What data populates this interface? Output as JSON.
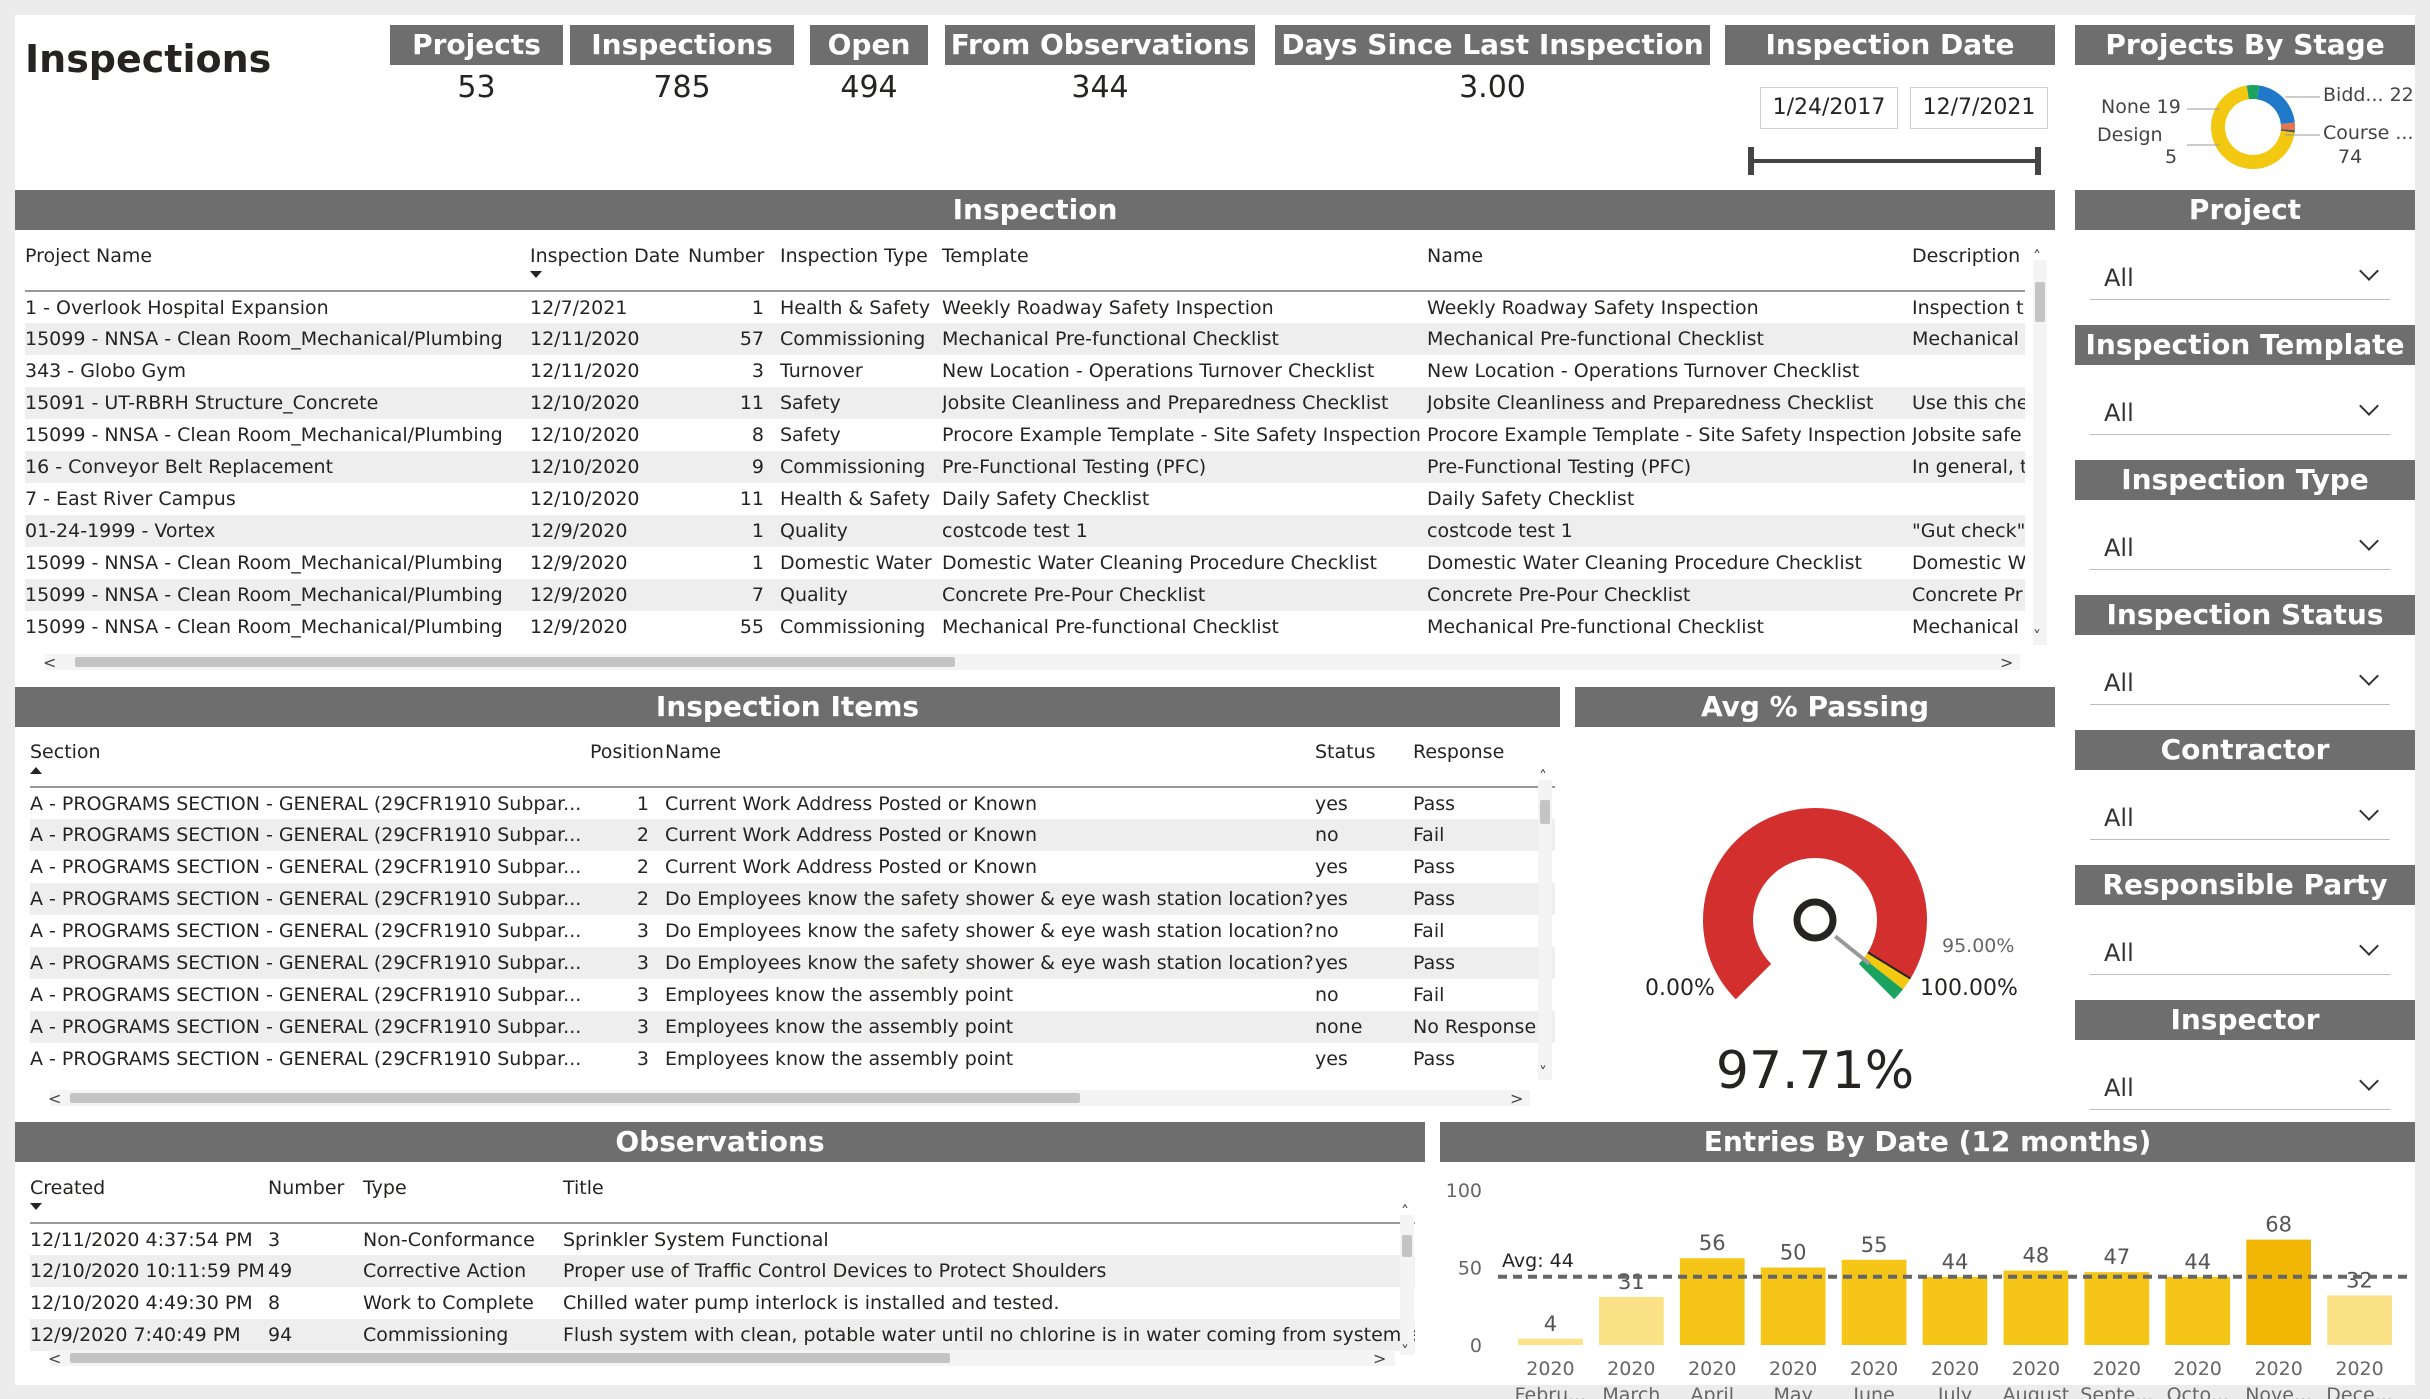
{
  "page": {
    "title": "Inspections"
  },
  "cards": [
    {
      "label": "Projects",
      "value": "53"
    },
    {
      "label": "Inspections",
      "value": "785"
    },
    {
      "label": "Open",
      "value": "494"
    },
    {
      "label": "From Observations",
      "value": "344"
    },
    {
      "label": "Days Since Last Inspection",
      "value": "3.00"
    }
  ],
  "date_filter": {
    "label": "Inspection Date",
    "start": "1/24/2017",
    "end": "12/7/2021"
  },
  "stage_chart": {
    "title": "Projects By Stage",
    "slices": [
      {
        "label": "None",
        "value": 19,
        "display": "None 19",
        "color": "#1f78c8"
      },
      {
        "label": "Bidd...",
        "value": 22,
        "display": "Bidd... 22",
        "color": "#1f78c8"
      },
      {
        "label": "Course ...",
        "value": 74,
        "display": "74",
        "color": "#f2c811"
      },
      {
        "label": "Design",
        "value": 5,
        "display": "5",
        "color": "#1aa260"
      }
    ],
    "extra_colors": [
      "#e8744f",
      "#555555",
      "#8ab4e8"
    ],
    "design_label": "Design",
    "course_label": "Course ...",
    "bidd_label": "Bidd... 22",
    "none_label": "None 19",
    "design_val": "5",
    "course_val": "74"
  },
  "inspection_table": {
    "title": "Inspection",
    "columns": [
      "Project Name",
      "Inspection Date",
      "Number",
      "Inspection Type",
      "Template",
      "Name",
      "Description"
    ],
    "rows": [
      [
        "1 - Overlook Hospital Expansion",
        "12/7/2021",
        "1",
        "Health & Safety",
        "Weekly Roadway Safety Inspection",
        "Weekly Roadway Safety Inspection",
        "Inspection t"
      ],
      [
        "15099 - NNSA - Clean Room_Mechanical/Plumbing",
        "12/11/2020",
        "57",
        "Commissioning",
        "Mechanical Pre-functional Checklist",
        "Mechanical Pre-functional Checklist",
        "Mechanical"
      ],
      [
        "343 - Globo Gym",
        "12/11/2020",
        "3",
        "Turnover",
        "New Location - Operations Turnover Checklist",
        "New Location - Operations Turnover Checklist",
        ""
      ],
      [
        "15091 - UT-RBRH Structure_Concrete",
        "12/10/2020",
        "11",
        "Safety",
        "Jobsite Cleanliness and Preparedness Checklist",
        "Jobsite Cleanliness and Preparedness Checklist",
        "Use this che"
      ],
      [
        "15099 - NNSA - Clean Room_Mechanical/Plumbing",
        "12/10/2020",
        "8",
        "Safety",
        "Procore Example Template - Site Safety Inspection",
        "Procore Example Template - Site Safety Inspection",
        "Jobsite safe"
      ],
      [
        "16 - Conveyor Belt Replacement",
        "12/10/2020",
        "9",
        "Commissioning",
        "Pre-Functional Testing (PFC)",
        "Pre-Functional Testing (PFC)",
        "In general, t"
      ],
      [
        "7 - East River Campus",
        "12/10/2020",
        "11",
        "Health & Safety",
        "Daily Safety Checklist",
        "Daily Safety Checklist",
        ""
      ],
      [
        "01-24-1999 - Vortex",
        "12/9/2020",
        "1",
        "Quality",
        "costcode test 1",
        "costcode test 1",
        "\"Gut check\""
      ],
      [
        "15099 - NNSA - Clean Room_Mechanical/Plumbing",
        "12/9/2020",
        "1",
        "Domestic Water",
        "Domestic Water Cleaning Procedure Checklist",
        "Domestic Water Cleaning Procedure Checklist",
        "Domestic W"
      ],
      [
        "15099 - NNSA - Clean Room_Mechanical/Plumbing",
        "12/9/2020",
        "7",
        "Quality",
        "Concrete Pre-Pour Checklist",
        "Concrete Pre-Pour Checklist",
        "Concrete Pr"
      ],
      [
        "15099 - NNSA - Clean Room_Mechanical/Plumbing",
        "12/9/2020",
        "55",
        "Commissioning",
        "Mechanical Pre-functional Checklist",
        "Mechanical Pre-functional Checklist",
        "Mechanical"
      ]
    ]
  },
  "items_table": {
    "title": "Inspection Items",
    "columns": [
      "Section",
      "Position",
      "Name",
      "Status",
      "Response"
    ],
    "rows": [
      [
        "A - PROGRAMS SECTION - GENERAL (29CFR1910 Subpar...",
        "1",
        "Current Work Address Posted or Known",
        "yes",
        "Pass"
      ],
      [
        "A - PROGRAMS SECTION - GENERAL (29CFR1910 Subpar...",
        "2",
        "Current Work Address Posted or Known",
        "no",
        "Fail"
      ],
      [
        "A - PROGRAMS SECTION - GENERAL (29CFR1910 Subpar...",
        "2",
        "Current Work Address Posted or Known",
        "yes",
        "Pass"
      ],
      [
        "A - PROGRAMS SECTION - GENERAL (29CFR1910 Subpar...",
        "2",
        "Do Employees know the safety shower & eye wash station location?",
        "yes",
        "Pass"
      ],
      [
        "A - PROGRAMS SECTION - GENERAL (29CFR1910 Subpar...",
        "3",
        "Do Employees know the safety shower & eye wash station location?",
        "no",
        "Fail"
      ],
      [
        "A - PROGRAMS SECTION - GENERAL (29CFR1910 Subpar...",
        "3",
        "Do Employees know the safety shower & eye wash station location?",
        "yes",
        "Pass"
      ],
      [
        "A - PROGRAMS SECTION - GENERAL (29CFR1910 Subpar...",
        "3",
        "Employees know the assembly point",
        "no",
        "Fail"
      ],
      [
        "A - PROGRAMS SECTION - GENERAL (29CFR1910 Subpar...",
        "3",
        "Employees know the assembly point",
        "none",
        "No Response"
      ],
      [
        "A - PROGRAMS SECTION - GENERAL (29CFR1910 Subpar...",
        "3",
        "Employees know the assembly point",
        "yes",
        "Pass"
      ]
    ]
  },
  "gauge": {
    "title": "Avg % Passing",
    "value": 97.71,
    "value_label": "97.71%",
    "min_label": "0.00%",
    "max_label": "100.00%",
    "target_label": "95.00%",
    "colors": {
      "fail": "#d32f2f",
      "warn": "#f2c811",
      "pass": "#1aa260"
    }
  },
  "observations_table": {
    "title": "Observations",
    "columns": [
      "Created",
      "Number",
      "Type",
      "Title"
    ],
    "rows": [
      [
        "12/11/2020 4:37:54 PM",
        "3",
        "Non-Conformance",
        "Sprinkler System Functional"
      ],
      [
        "12/10/2020 10:11:59 PM",
        "49",
        "Corrective Action",
        "Proper use of Traffic Control Devices to Protect Shoulders"
      ],
      [
        "12/10/2020 4:49:30 PM",
        "8",
        "Work to Complete",
        "Chilled water pump interlock is installed and tested."
      ],
      [
        "12/9/2020 7:40:49 PM",
        "94",
        "Commissioning",
        "Flush system with clean, potable water until no chlorine is in water coming from system after th"
      ]
    ]
  },
  "slicers": [
    {
      "label": "Project",
      "value": "All"
    },
    {
      "label": "Inspection Template",
      "value": "All"
    },
    {
      "label": "Inspection Type",
      "value": "All"
    },
    {
      "label": "Inspection Status",
      "value": "All"
    },
    {
      "label": "Contractor",
      "value": "All"
    },
    {
      "label": "Responsible Party",
      "value": "All"
    },
    {
      "label": "Inspector",
      "value": "All"
    }
  ],
  "chart_data": {
    "type": "bar",
    "title": "Entries By Date (12 months)",
    "categories": [
      "Febru...",
      "March",
      "April",
      "May",
      "June",
      "July",
      "August",
      "Septe...",
      "Octo...",
      "Nove...",
      "Dece..."
    ],
    "years": [
      "2020",
      "2020",
      "2020",
      "2020",
      "2020",
      "2020",
      "2020",
      "2020",
      "2020",
      "2020",
      "2020"
    ],
    "values": [
      4,
      31,
      56,
      50,
      55,
      44,
      48,
      47,
      44,
      68,
      32
    ],
    "avg": 44,
    "avg_label": "Avg: 44",
    "ylim": [
      0,
      100
    ],
    "yticks": [
      0,
      50,
      100
    ],
    "grid": false,
    "xlabel": "",
    "ylabel": ""
  }
}
